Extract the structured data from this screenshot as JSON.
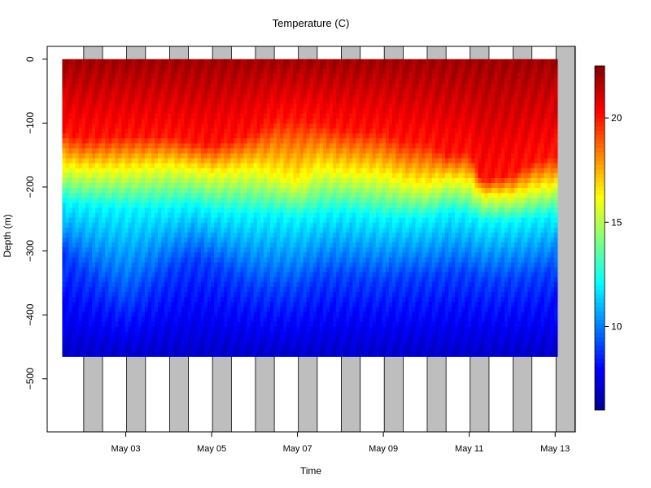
{
  "chart_data": {
    "type": "heatmap",
    "title": "Temperature (C)",
    "xlabel": "Time",
    "ylabel": "Depth (m)",
    "x_ticks": [
      "May 03",
      "May 05",
      "May 07",
      "May 09",
      "May 11",
      "May 13"
    ],
    "x_tick_days": [
      3,
      5,
      7,
      9,
      11,
      13
    ],
    "xlim_days": [
      1.17,
      13.47
    ],
    "y_ticks": [
      0,
      -100,
      -200,
      -300,
      -400,
      -500
    ],
    "ylim": [
      -583,
      20
    ],
    "colorbar": {
      "ticks": [
        10,
        15,
        20
      ],
      "range": [
        6,
        22.5
      ],
      "colormap": [
        "#00008f",
        "#0000ff",
        "#00ffff",
        "#ffff00",
        "#ff0000",
        "#800000"
      ]
    },
    "night_bands_days": [
      [
        2.02,
        2.46
      ],
      [
        3.02,
        3.46
      ],
      [
        4.02,
        4.46
      ],
      [
        5.02,
        5.46
      ],
      [
        6.02,
        6.46
      ],
      [
        7.02,
        7.46
      ],
      [
        8.02,
        8.46
      ],
      [
        9.02,
        9.46
      ],
      [
        10.02,
        10.46
      ],
      [
        11.02,
        11.46
      ],
      [
        12.02,
        12.46
      ],
      [
        13.02,
        13.46
      ]
    ],
    "profile_days": [
      1.52,
      13.05
    ],
    "profile_depth_range": [
      0,
      -465
    ],
    "isotherm_depths": {
      "hours_days": [
        1.52,
        2.0,
        3.0,
        4.0,
        4.6,
        5.0,
        6.0,
        6.5,
        7.0,
        7.5,
        8.0,
        9.0,
        9.5,
        10.0,
        10.5,
        11.0,
        11.3,
        12.0,
        12.5,
        13.05
      ],
      "t20": [
        -115,
        -125,
        -120,
        -120,
        -130,
        -135,
        -115,
        -95,
        -95,
        -100,
        -110,
        -115,
        -130,
        -130,
        -150,
        -145,
        -190,
        -180,
        -160,
        -150
      ],
      "t16": [
        -170,
        -175,
        -175,
        -170,
        -175,
        -180,
        -175,
        -185,
        -195,
        -175,
        -180,
        -185,
        -195,
        -200,
        -190,
        -195,
        -215,
        -215,
        -205,
        -200
      ],
      "t12": [
        -225,
        -230,
        -235,
        -235,
        -230,
        -240,
        -245,
        -245,
        -250,
        -245,
        -240,
        -250,
        -250,
        -250,
        -240,
        -245,
        -255,
        -255,
        -250,
        -245
      ],
      "t9": [
        -300,
        -330,
        -380,
        -330,
        -310,
        -320,
        -355,
        -360,
        -360,
        -340,
        -340,
        -345,
        -340,
        -340,
        -335,
        -335,
        -345,
        -345,
        -340,
        -330
      ]
    },
    "grid": false,
    "legend": "colorbar-right"
  }
}
